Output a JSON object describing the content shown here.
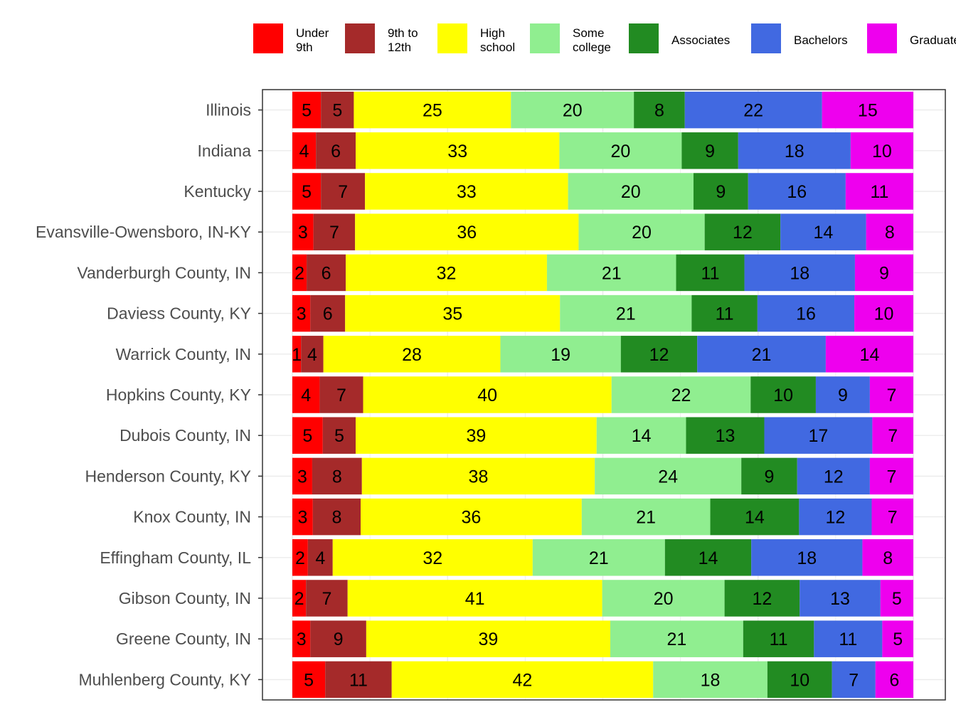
{
  "chart_data": {
    "type": "bar",
    "orientation": "horizontal",
    "stacked": true,
    "grid": true,
    "legend_position": "top",
    "xlim": [
      0,
      100
    ],
    "series": [
      {
        "name": "Under 9th",
        "legend_lines": [
          "Under",
          "9th"
        ],
        "color": "#ff0000"
      },
      {
        "name": "9th to 12th",
        "legend_lines": [
          "9th to",
          "12th"
        ],
        "color": "#a52a2a"
      },
      {
        "name": "High school",
        "legend_lines": [
          "High",
          "school"
        ],
        "color": "#ffff00"
      },
      {
        "name": "Some college",
        "legend_lines": [
          "Some",
          "college"
        ],
        "color": "#90ee90"
      },
      {
        "name": "Associates",
        "legend_lines": [
          "Associates"
        ],
        "color": "#228b22"
      },
      {
        "name": "Bachelors",
        "legend_lines": [
          "Bachelors"
        ],
        "color": "#4169e1"
      },
      {
        "name": "Graduate",
        "legend_lines": [
          "Graduate"
        ],
        "color": "#ee00ee"
      }
    ],
    "categories": [
      "Illinois",
      "Indiana",
      "Kentucky",
      "Evansville-Owensboro, IN-KY",
      "Vanderburgh County, IN",
      "Daviess County, KY",
      "Warrick County, IN",
      "Hopkins County, KY",
      "Dubois County, IN",
      "Henderson County, KY",
      "Knox County, IN",
      "Effingham County, IL",
      "Gibson County, IN",
      "Greene County, IN",
      "Muhlenberg County, KY"
    ],
    "values": [
      [
        4.6,
        5.3,
        25.3,
        19.8,
        8.2,
        22.1,
        14.7
      ],
      [
        3.8,
        6.4,
        32.8,
        19.7,
        9.1,
        18.1,
        10.1
      ],
      [
        4.6,
        7.1,
        32.7,
        20.2,
        8.8,
        15.7,
        10.9
      ],
      [
        3.4,
        6.7,
        36.0,
        20.3,
        12.2,
        13.8,
        7.6
      ],
      [
        2.3,
        6.3,
        32.4,
        20.8,
        11.0,
        17.8,
        9.4
      ],
      [
        2.9,
        5.6,
        34.6,
        21.2,
        10.6,
        15.6,
        9.5
      ],
      [
        1.4,
        3.6,
        28.5,
        19.4,
        12.3,
        20.7,
        14.1
      ],
      [
        4.4,
        7.0,
        40.0,
        22.4,
        10.5,
        8.7,
        7.0
      ],
      [
        4.9,
        5.3,
        38.8,
        14.4,
        12.6,
        17.4,
        6.6
      ],
      [
        3.2,
        8.0,
        37.5,
        23.6,
        9.0,
        11.7,
        7.0
      ],
      [
        3.3,
        7.7,
        35.6,
        20.7,
        14.3,
        11.7,
        6.7
      ],
      [
        2.5,
        4.0,
        32.2,
        21.3,
        13.9,
        17.9,
        8.2
      ],
      [
        2.2,
        6.7,
        41.0,
        19.7,
        12.1,
        13.0,
        5.3
      ],
      [
        2.9,
        9.0,
        39.3,
        21.4,
        11.4,
        11.0,
        5.0
      ],
      [
        5.3,
        10.7,
        42.1,
        18.4,
        10.4,
        7.0,
        6.1
      ]
    ],
    "labels": [
      [
        "5",
        "5",
        "25",
        "20",
        "8",
        "22",
        "15"
      ],
      [
        "4",
        "6",
        "33",
        "20",
        "9",
        "18",
        "10"
      ],
      [
        "5",
        "7",
        "33",
        "20",
        "9",
        "16",
        "11"
      ],
      [
        "3",
        "7",
        "36",
        "20",
        "12",
        "14",
        "8"
      ],
      [
        "2",
        "6",
        "32",
        "21",
        "11",
        "18",
        "9"
      ],
      [
        "3",
        "6",
        "35",
        "21",
        "11",
        "16",
        "10"
      ],
      [
        "1",
        "4",
        "28",
        "19",
        "12",
        "21",
        "14"
      ],
      [
        "4",
        "7",
        "40",
        "22",
        "10",
        "9",
        "7"
      ],
      [
        "5",
        "5",
        "39",
        "14",
        "13",
        "17",
        "7"
      ],
      [
        "3",
        "8",
        "38",
        "24",
        "9",
        "12",
        "7"
      ],
      [
        "3",
        "8",
        "36",
        "21",
        "14",
        "12",
        "7"
      ],
      [
        "2",
        "4",
        "32",
        "21",
        "14",
        "18",
        "8"
      ],
      [
        "2",
        "7",
        "41",
        "20",
        "12",
        "13",
        "5"
      ],
      [
        "3",
        "9",
        "39",
        "21",
        "11",
        "11",
        "5"
      ],
      [
        "5",
        "11",
        "42",
        "18",
        "10",
        "7",
        "6"
      ]
    ],
    "title": "",
    "xlabel": "",
    "ylabel": ""
  }
}
